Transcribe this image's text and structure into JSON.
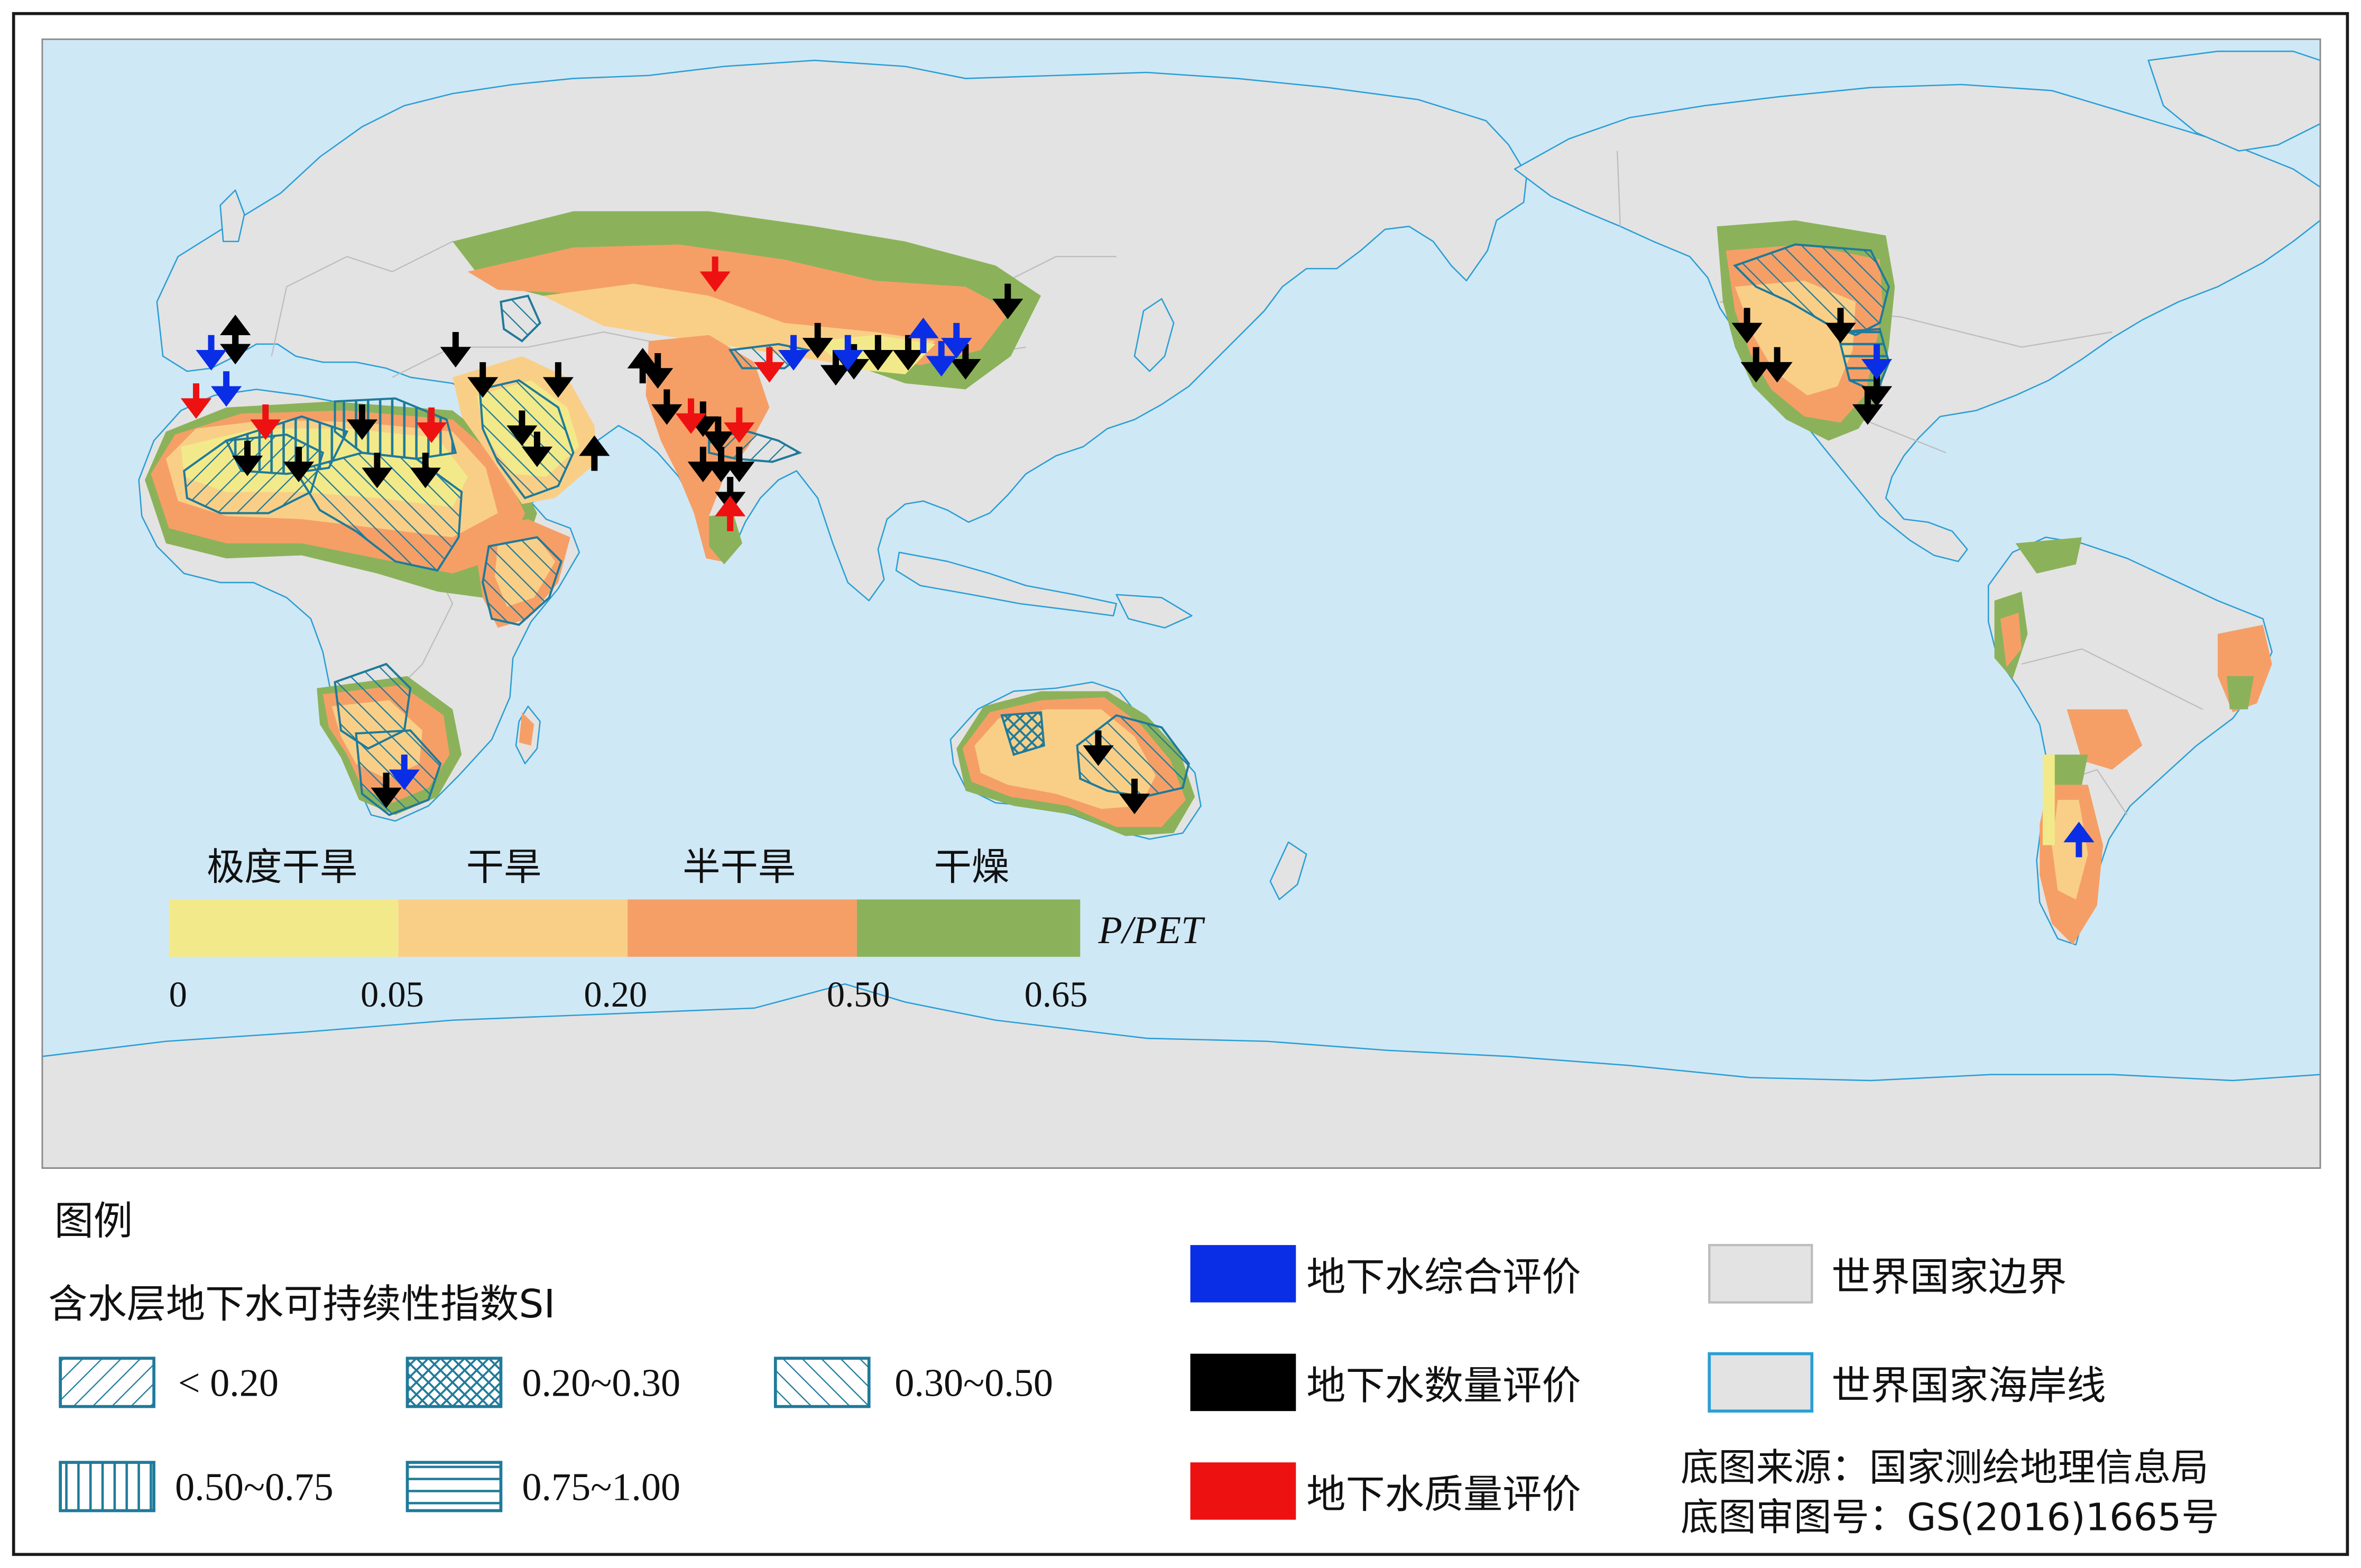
{
  "map": {
    "colors": {
      "ocean": "#cfe8f6",
      "land": "#e3e3e3",
      "border": "#bdbdbd",
      "coast": "#2a9fd6",
      "hyper_arid": "#f2ea8a",
      "arid": "#f9cf87",
      "semi_arid": "#f59f67",
      "dry_subhumid": "#8bb25a",
      "hatch": "#1f7a9a",
      "arrow_comprehensive": "#0a2ee6",
      "arrow_quantity": "#000000",
      "arrow_quality": "#ee1111"
    }
  },
  "aridity": {
    "classes": [
      {
        "label": "极度干旱",
        "color": "#f2ea8a",
        "range": [
          0,
          0.05
        ]
      },
      {
        "label": "干旱",
        "color": "#f9cf87",
        "range": [
          0.05,
          0.2
        ]
      },
      {
        "label": "半干旱",
        "color": "#f59f67",
        "range": [
          0.2,
          0.5
        ]
      },
      {
        "label": "干燥",
        "color": "#8bb25a",
        "range": [
          0.5,
          0.65
        ]
      }
    ],
    "ticks": [
      "0",
      "0.05",
      "0.20",
      "0.50",
      "0.65"
    ],
    "index_label": "P/PET"
  },
  "legend": {
    "title": "图例",
    "si_title": "含水层地下水可持续性指数SI",
    "si_classes": [
      {
        "label": "< 0.20",
        "pattern": "diagonal-forward"
      },
      {
        "label": "0.20~0.30",
        "pattern": "cross-hatch"
      },
      {
        "label": "0.30~0.50",
        "pattern": "diagonal-back"
      },
      {
        "label": "0.50~0.75",
        "pattern": "vertical"
      },
      {
        "label": "0.75~1.00",
        "pattern": "horizontal"
      }
    ],
    "evaluations": [
      {
        "label": "地下水综合评价",
        "color": "#0a2ee6"
      },
      {
        "label": "地下水数量评价",
        "color": "#000000"
      },
      {
        "label": "地下水质量评价",
        "color": "#ee1111"
      }
    ],
    "boundaries": [
      {
        "label": "世界国家边界",
        "style": "border"
      },
      {
        "label": "世界国家海岸线",
        "style": "coast"
      }
    ],
    "source": "底图来源：国家测绘地理信息局",
    "review_number": "底图审图号：GS(2016)1665号"
  }
}
